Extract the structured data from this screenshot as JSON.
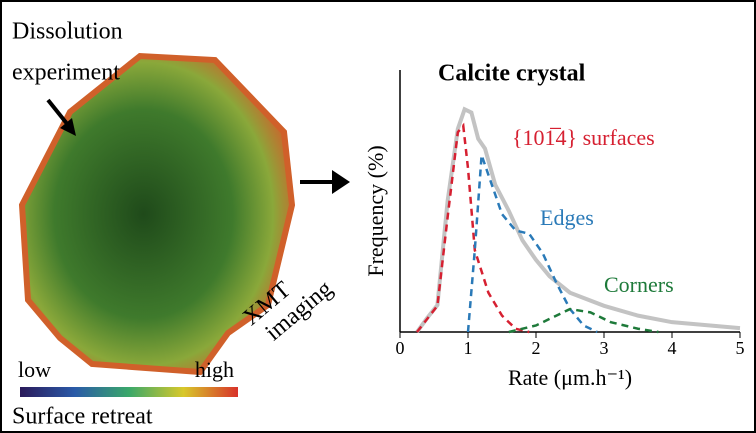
{
  "left_panel": {
    "experiment_label": [
      "Dissolution",
      "experiment"
    ],
    "imaging_label": [
      "XMT",
      "imaging"
    ],
    "scale_low": "low",
    "scale_high": "high",
    "scale_title": "Surface retreat"
  },
  "chart_data": {
    "type": "line",
    "title": "Calcite crystal",
    "x_label": "Rate (μm.h⁻¹)",
    "y_label": "Frequency (%)",
    "xlim": [
      0,
      5
    ],
    "xticks": [
      0,
      1,
      2,
      3,
      4,
      5
    ],
    "ylim": [
      0,
      8
    ],
    "series": [
      {
        "color": "#c3c3c3",
        "dashed": false,
        "x": [
          0.25,
          0.4,
          0.55,
          0.7,
          0.85,
          0.95,
          1.05,
          1.15,
          1.25,
          1.4,
          1.6,
          1.8,
          2.0,
          2.2,
          2.5,
          3.0,
          3.5,
          4.0,
          5.0
        ],
        "values": [
          0,
          0.43,
          0.82,
          4.0,
          6.2,
          6.8,
          6.7,
          5.9,
          5.6,
          4.5,
          3.7,
          2.8,
          2.2,
          1.7,
          1.2,
          0.8,
          0.5,
          0.3,
          0.12
        ]
      },
      {
        "name": "{101̅4} surfaces",
        "color": "#d62031",
        "dashed": true,
        "x": [
          0.25,
          0.55,
          0.7,
          0.85,
          0.93,
          1.0,
          1.1,
          1.3,
          1.5,
          1.7,
          1.9
        ],
        "values": [
          0,
          0.8,
          3.5,
          6.1,
          6.3,
          5.0,
          2.5,
          1.2,
          0.5,
          0.1,
          0
        ]
      },
      {
        "name": "Edges",
        "color": "#2a7ab8",
        "dashed": true,
        "x": [
          1.0,
          1.1,
          1.2,
          1.3,
          1.5,
          1.7,
          1.9,
          2.1,
          2.3,
          2.5,
          2.7,
          2.9
        ],
        "values": [
          0,
          2.5,
          5.4,
          4.8,
          3.6,
          3.1,
          3.0,
          2.4,
          1.5,
          0.7,
          0.2,
          0
        ]
      },
      {
        "name": "Corners",
        "color": "#1e7a3a",
        "dashed": true,
        "x": [
          1.6,
          2.0,
          2.3,
          2.5,
          2.8,
          3.1,
          3.5,
          3.8
        ],
        "values": [
          0,
          0.2,
          0.5,
          0.7,
          0.6,
          0.3,
          0.1,
          0
        ]
      }
    ]
  }
}
